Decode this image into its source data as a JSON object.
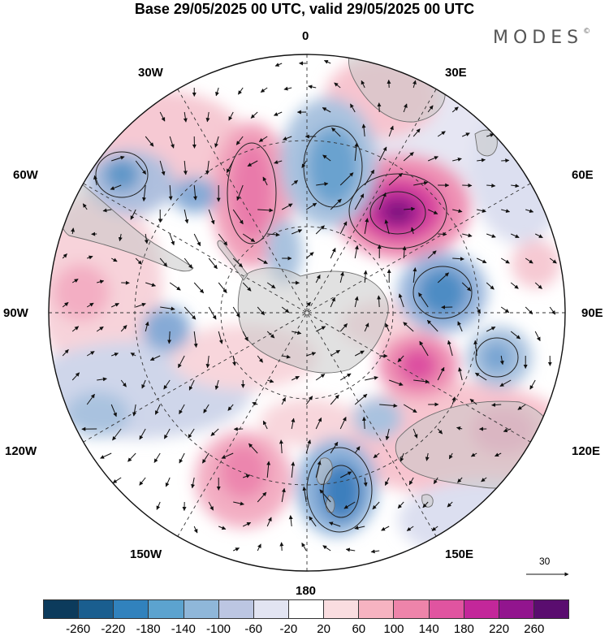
{
  "title": "Base 29/05/2025 00 UTC, valid 29/05/2025 00 UTC",
  "brand": "MODES",
  "brand_mark": "©",
  "map": {
    "projection": "south-polar-stereographic",
    "longitude_labels": {
      "top": "0",
      "bottom": "180",
      "left": "90W",
      "right": "90E",
      "30W": "30W",
      "30E": "30E",
      "60W": "60W",
      "60E": "60E",
      "120W": "120W",
      "120E": "120E",
      "150W": "150W",
      "150E": "150E"
    },
    "vector_scale_label": "30"
  },
  "colorbar": {
    "colors": [
      "#0c3b5c",
      "#1a5e8f",
      "#3182bd",
      "#5ca3cf",
      "#8fb7d9",
      "#bcc6e2",
      "#e2e4f2",
      "#ffffff",
      "#fadde0",
      "#f6b3c1",
      "#ee84aa",
      "#e054a0",
      "#c3279a",
      "#92158e",
      "#5a0d6f"
    ],
    "ticks": [
      "-260",
      "-220",
      "-180",
      "-140",
      "-100",
      "-60",
      "-20",
      "20",
      "60",
      "100",
      "140",
      "180",
      "220",
      "260"
    ]
  }
}
